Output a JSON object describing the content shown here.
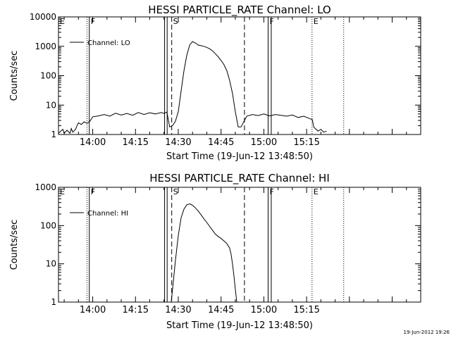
{
  "chart_data": [
    {
      "type": "line",
      "title": "HESSI PARTICLE_RATE Channel: LO",
      "xlabel": "Start Time (19-Jun-12 13:48:50)",
      "ylabel": "Counts/sec",
      "yscale": "log",
      "xlim": [
        -12,
        115
      ],
      "ylim": [
        1,
        10000
      ],
      "xticks": [
        0,
        15,
        30,
        45,
        60,
        75
      ],
      "xtick_labels": [
        "14:00",
        "14:15",
        "14:30",
        "14:45",
        "15:00",
        "15:15"
      ],
      "yticks": [
        1,
        10,
        100,
        1000,
        10000
      ],
      "ytick_labels": [
        "1",
        "10",
        "100",
        "1000",
        "10000"
      ],
      "legend": {
        "position": "top-left",
        "entries": [
          "Channel: LO"
        ]
      },
      "grid": false,
      "series": [
        {
          "name": "Channel: LO",
          "x": [
            -12,
            -10.5,
            -10,
            -9,
            -8,
            -7.5,
            -7,
            -6,
            -5.5,
            -5,
            -4,
            -3,
            -2,
            -1,
            0,
            2,
            4,
            6,
            8,
            10,
            12,
            14,
            16,
            18,
            20,
            22,
            24,
            25,
            26,
            27,
            28,
            29,
            30,
            31,
            32,
            33,
            34,
            35,
            36,
            37,
            38,
            39,
            40,
            41,
            42,
            43,
            44,
            45,
            46,
            47,
            48,
            49,
            50,
            51,
            52,
            54,
            56,
            58,
            60,
            62,
            64,
            66,
            68,
            70,
            72,
            74,
            76,
            77,
            77.5,
            78,
            79,
            80,
            81,
            82
          ],
          "y": [
            1.1,
            1.5,
            1.1,
            1.4,
            1.1,
            1.6,
            1.2,
            1.5,
            2,
            2.5,
            2.2,
            2.7,
            2.4,
            2.8,
            4,
            4.3,
            4.8,
            4.2,
            5.3,
            4.6,
            5.2,
            4.5,
            5.6,
            4.8,
            5.5,
            5,
            5.6,
            5.2,
            5.8,
            1.8,
            2,
            2.8,
            6,
            30,
            150,
            500,
            1100,
            1450,
            1300,
            1100,
            1050,
            1000,
            920,
            820,
            700,
            560,
            440,
            330,
            240,
            150,
            70,
            25,
            6,
            1.8,
            1.8,
            4.2,
            4.8,
            4.4,
            5,
            4.3,
            4.8,
            4.5,
            4.2,
            4.6,
            3.8,
            4.2,
            3.5,
            3.2,
            1.8,
            1.6,
            1.3,
            1.5,
            1.2,
            1.3
          ]
        }
      ],
      "markers": [
        {
          "x": -12,
          "style": "solid",
          "label": "E"
        },
        {
          "x": -2,
          "style": "dotted",
          "label": ""
        },
        {
          "x": -1.2,
          "style": "solid",
          "label": "F"
        },
        {
          "x": 25.2,
          "style": "solid",
          "label": ""
        },
        {
          "x": 26.1,
          "style": "solid",
          "label": ""
        },
        {
          "x": 27.7,
          "style": "dashed",
          "label": "S"
        },
        {
          "x": 53.2,
          "style": "dashed",
          "label": ""
        },
        {
          "x": 61.5,
          "style": "solid",
          "label": "F"
        },
        {
          "x": 62.6,
          "style": "solid",
          "label": ""
        },
        {
          "x": 76.9,
          "style": "dotted",
          "label": "E"
        },
        {
          "x": 88,
          "style": "dotted",
          "label": ""
        }
      ]
    },
    {
      "type": "line",
      "title": "HESSI PARTICLE_RATE Channel: HI",
      "xlabel": "Start Time (19-Jun-12 13:48:50)",
      "ylabel": "Counts/sec",
      "yscale": "log",
      "xlim": [
        -12,
        115
      ],
      "ylim": [
        1,
        1000
      ],
      "xticks": [
        0,
        15,
        30,
        45,
        60,
        75
      ],
      "xtick_labels": [
        "14:00",
        "14:15",
        "14:30",
        "14:45",
        "15:00",
        "15:15"
      ],
      "yticks": [
        1,
        10,
        100,
        1000
      ],
      "ytick_labels": [
        "1",
        "10",
        "100",
        "1000"
      ],
      "legend": {
        "position": "top-left",
        "entries": [
          "Channel: HI"
        ]
      },
      "grid": false,
      "series": [
        {
          "name": "Channel: HI",
          "x": [
            27.5,
            28,
            29,
            30,
            31,
            32,
            33,
            34,
            35,
            36,
            37,
            38,
            39,
            40,
            41,
            42,
            43,
            44,
            45,
            46,
            47,
            48,
            48.5,
            49,
            49.5,
            50,
            50.5
          ],
          "y": [
            1,
            2.2,
            12,
            55,
            160,
            270,
            350,
            370,
            340,
            290,
            240,
            190,
            150,
            120,
            95,
            75,
            60,
            52,
            46,
            40,
            34,
            26,
            18,
            10,
            5,
            2.2,
            1
          ]
        }
      ],
      "markers": [
        {
          "x": -12,
          "style": "solid",
          "label": "E"
        },
        {
          "x": -2,
          "style": "dotted",
          "label": ""
        },
        {
          "x": -1.2,
          "style": "solid",
          "label": "F"
        },
        {
          "x": 25.2,
          "style": "solid",
          "label": ""
        },
        {
          "x": 26.1,
          "style": "solid",
          "label": ""
        },
        {
          "x": 27.7,
          "style": "dashed",
          "label": "S"
        },
        {
          "x": 53.2,
          "style": "dashed",
          "label": ""
        },
        {
          "x": 61.5,
          "style": "solid",
          "label": "F"
        },
        {
          "x": 62.6,
          "style": "solid",
          "label": ""
        },
        {
          "x": 76.9,
          "style": "dotted",
          "label": "E"
        },
        {
          "x": 88,
          "style": "dotted",
          "label": ""
        }
      ]
    }
  ],
  "footer": {
    "timestamp": "19-Jun-2012 19:26"
  }
}
